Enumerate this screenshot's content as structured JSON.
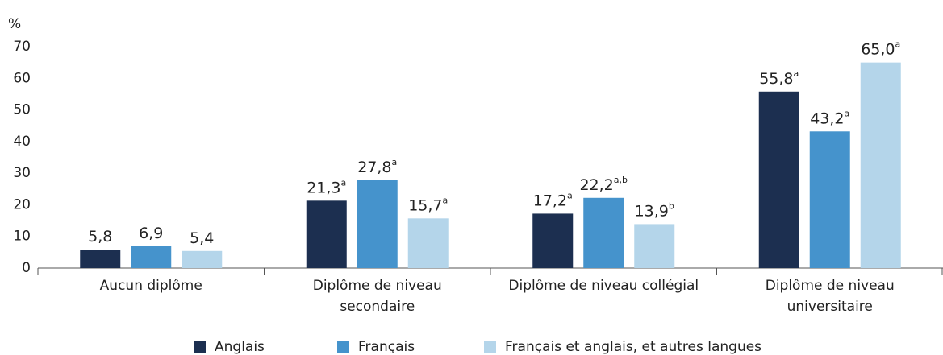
{
  "chart_data": {
    "type": "bar",
    "y_label": "%",
    "categories": [
      "Aucun diplôme",
      "Diplôme de niveau secondaire",
      "Diplôme de niveau collégial",
      "Diplôme de niveau universitaire"
    ],
    "series": [
      {
        "name": "Anglais",
        "color": "#1c2f50",
        "values": [
          5.8,
          21.3,
          17.2,
          55.8
        ],
        "value_labels": [
          "5,8",
          "21,3",
          "17,2",
          "55,8"
        ],
        "notes": [
          null,
          "a",
          "a",
          "a"
        ]
      },
      {
        "name": "Français",
        "color": "#4593cc",
        "values": [
          6.9,
          27.8,
          22.2,
          43.2
        ],
        "value_labels": [
          "6,9",
          "27,8",
          "22,2",
          "43,2"
        ],
        "notes": [
          null,
          "a",
          "a,b",
          "a"
        ]
      },
      {
        "name": "Français et anglais, et autres langues",
        "color": "#b4d5ea",
        "values": [
          5.4,
          15.7,
          13.9,
          65.0
        ],
        "value_labels": [
          "5,4",
          "15,7",
          "13,9",
          "65,0"
        ],
        "notes": [
          null,
          "a",
          "b",
          "a"
        ]
      }
    ],
    "ylim": [
      0,
      70
    ],
    "yticks": [
      0,
      10,
      20,
      30,
      40,
      50,
      60,
      70
    ],
    "grid": false
  }
}
